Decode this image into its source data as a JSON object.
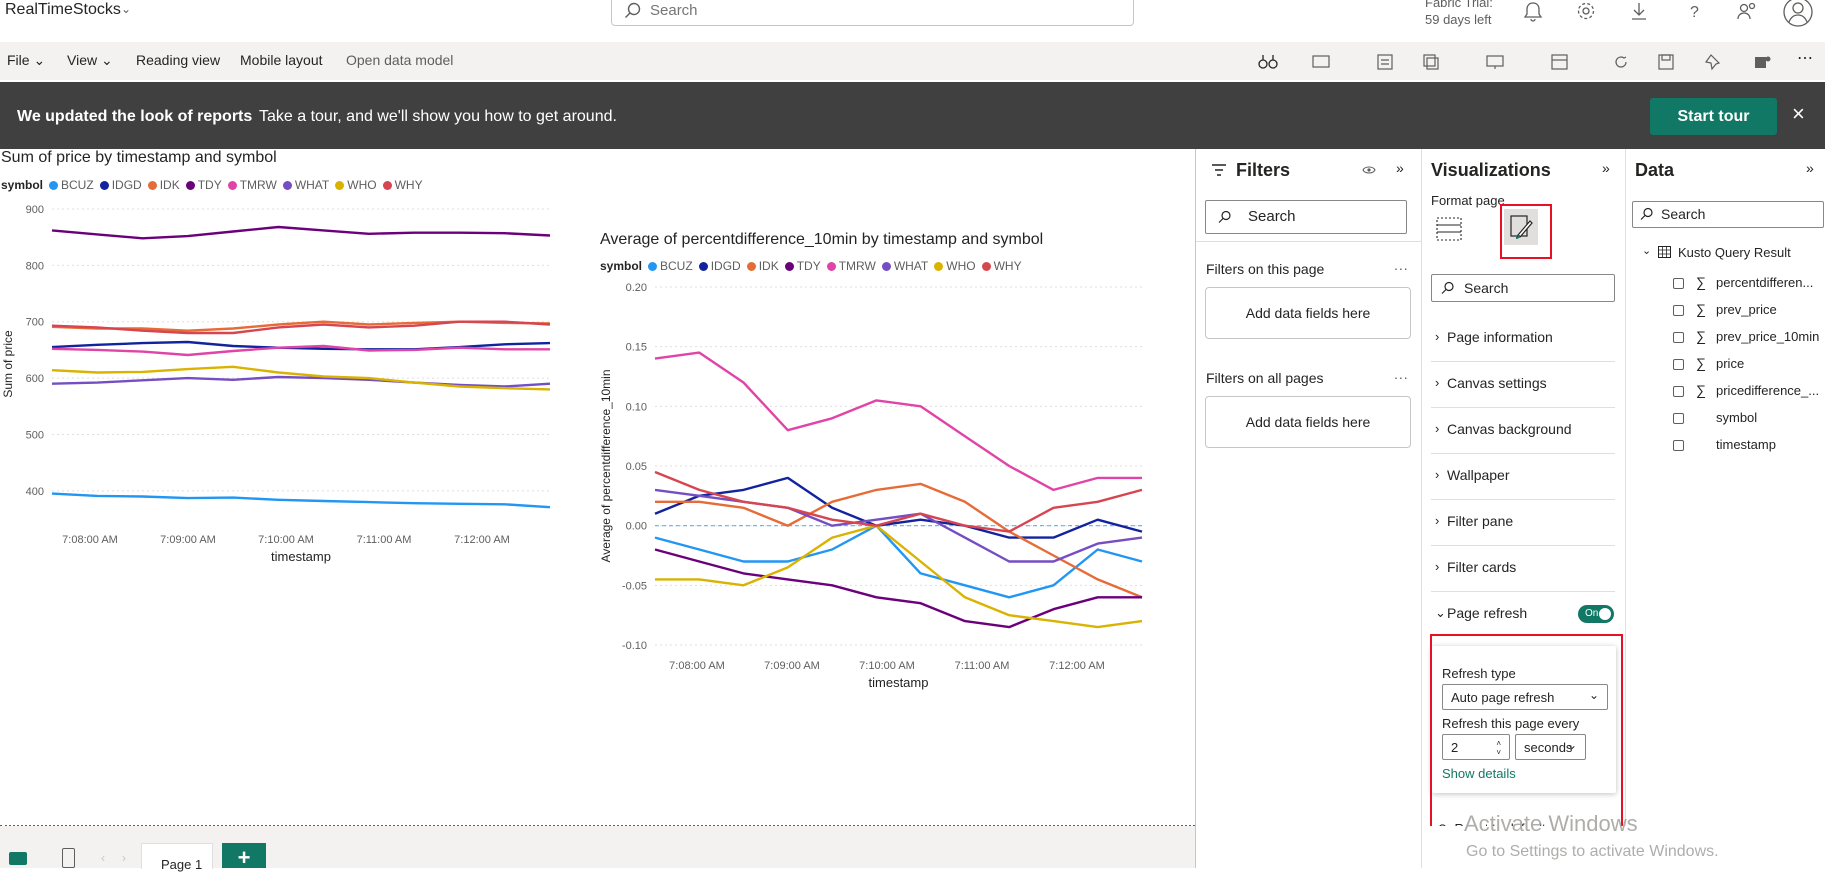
{
  "app": {
    "title": "RealTimeStocks"
  },
  "search": {
    "placeholder": "Search"
  },
  "trial": {
    "line1": "Fabric Trial:",
    "line2": "59 days left"
  },
  "menu": {
    "file": "File",
    "view": "View",
    "reading_view": "Reading view",
    "mobile_layout": "Mobile layout",
    "open_data_model": "Open data model"
  },
  "banner": {
    "bold": "We updated the look of reports",
    "text": "Take a tour, and we'll show you how to get around.",
    "button": "Start tour",
    "close": "×"
  },
  "legend_title": "symbol",
  "symbols": [
    "BCUZ",
    "IDGD",
    "IDK",
    "TDY",
    "TMRW",
    "WHAT",
    "WHO",
    "WHY"
  ],
  "colors": {
    "BCUZ": "#2196f3",
    "IDGD": "#12239e",
    "IDK": "#e66c37",
    "TDY": "#6b007b",
    "TMRW": "#e044a7",
    "WHAT": "#744ec2",
    "WHO": "#d9b300",
    "WHY": "#d64550",
    "accent": "#117865",
    "highlight": "#e81123"
  },
  "chart_data": [
    {
      "type": "line",
      "title": "Sum of price by timestamp and symbol",
      "xlabel": "timestamp",
      "ylabel": "Sum of price",
      "x_ticks": [
        "7:08:00 AM",
        "7:09:00 AM",
        "7:10:00 AM",
        "7:11:00 AM",
        "7:12:00 AM"
      ],
      "y_ticks": [
        "900",
        "800",
        "700",
        "600",
        "500",
        "400"
      ],
      "ylim": [
        350,
        900
      ],
      "grid": true,
      "legend": "top",
      "x": [
        "7:07:30",
        "7:08:00",
        "7:08:30",
        "7:09:00",
        "7:09:30",
        "7:10:00",
        "7:10:30",
        "7:11:00",
        "7:11:30",
        "7:12:00",
        "7:12:30",
        "7:12:45"
      ],
      "series": [
        {
          "name": "BCUZ",
          "values": [
            395,
            391,
            390,
            387,
            388,
            384,
            382,
            380,
            378,
            377,
            376,
            371
          ]
        },
        {
          "name": "IDGD",
          "values": [
            655,
            659,
            662,
            664,
            657,
            654,
            652,
            651,
            651,
            655,
            660,
            662
          ]
        },
        {
          "name": "IDK",
          "values": [
            691,
            688,
            688,
            684,
            688,
            695,
            700,
            695,
            698,
            700,
            698,
            697
          ]
        },
        {
          "name": "TDY",
          "values": [
            862,
            855,
            848,
            852,
            860,
            868,
            862,
            856,
            858,
            858,
            857,
            853
          ]
        },
        {
          "name": "TMRW",
          "values": [
            652,
            650,
            647,
            641,
            648,
            654,
            657,
            649,
            650,
            654,
            651,
            651
          ]
        },
        {
          "name": "WHAT",
          "values": [
            590,
            592,
            596,
            600,
            597,
            602,
            600,
            597,
            592,
            588,
            585,
            590
          ]
        },
        {
          "name": "WHO",
          "values": [
            614,
            610,
            611,
            616,
            620,
            610,
            603,
            600,
            592,
            585,
            582,
            580
          ]
        },
        {
          "name": "WHY",
          "values": [
            693,
            690,
            684,
            680,
            680,
            690,
            695,
            690,
            693,
            700,
            700,
            695
          ]
        }
      ]
    },
    {
      "type": "line",
      "title": "Average of percentdifference_10min by timestamp and symbol",
      "xlabel": "timestamp",
      "ylabel": "Average of percentdifference_10min",
      "x_ticks": [
        "7:08:00 AM",
        "7:09:00 AM",
        "7:10:00 AM",
        "7:11:00 AM",
        "7:12:00 AM"
      ],
      "y_ticks": [
        "0.20",
        "0.15",
        "0.10",
        "0.05",
        "0.00",
        "-0.05",
        "-0.10"
      ],
      "ylim": [
        -0.1,
        0.2
      ],
      "grid": true,
      "legend": "top",
      "x": [
        "7:07:45",
        "7:08:00",
        "7:08:30",
        "7:09:00",
        "7:09:30",
        "7:10:00",
        "7:10:30",
        "7:11:00",
        "7:11:30",
        "7:12:00",
        "7:12:30",
        "7:12:45"
      ],
      "series": [
        {
          "name": "BCUZ",
          "values": [
            -0.01,
            -0.02,
            -0.03,
            -0.03,
            -0.02,
            0.0,
            -0.04,
            -0.05,
            -0.06,
            -0.05,
            -0.02,
            -0.03
          ]
        },
        {
          "name": "IDGD",
          "values": [
            0.01,
            0.025,
            0.03,
            0.04,
            0.015,
            0.0,
            0.005,
            0.0,
            -0.01,
            -0.01,
            0.005,
            -0.005
          ]
        },
        {
          "name": "IDK",
          "values": [
            0.02,
            0.02,
            0.015,
            0.0,
            0.02,
            0.03,
            0.035,
            0.02,
            -0.005,
            -0.025,
            -0.045,
            -0.06
          ]
        },
        {
          "name": "TDY",
          "values": [
            -0.02,
            -0.03,
            -0.04,
            -0.045,
            -0.05,
            -0.06,
            -0.065,
            -0.08,
            -0.085,
            -0.07,
            -0.06,
            -0.06
          ]
        },
        {
          "name": "TMRW",
          "values": [
            0.14,
            0.145,
            0.12,
            0.08,
            0.09,
            0.105,
            0.1,
            0.075,
            0.05,
            0.03,
            0.04,
            0.04
          ]
        },
        {
          "name": "WHAT",
          "values": [
            0.03,
            0.025,
            0.02,
            0.015,
            0.0,
            0.005,
            0.01,
            -0.01,
            -0.03,
            -0.03,
            -0.015,
            -0.01
          ]
        },
        {
          "name": "WHO",
          "values": [
            -0.045,
            -0.045,
            -0.05,
            -0.035,
            -0.01,
            0.0,
            -0.03,
            -0.06,
            -0.075,
            -0.08,
            -0.085,
            -0.08
          ]
        },
        {
          "name": "WHY",
          "values": [
            0.045,
            0.03,
            0.02,
            0.015,
            0.005,
            0.0,
            0.01,
            0.0,
            -0.005,
            0.015,
            0.02,
            0.03
          ]
        }
      ]
    }
  ],
  "filters": {
    "title": "Filters",
    "search": "Search",
    "on_this_page": "Filters on this page",
    "on_all_pages": "Filters on all pages",
    "add_fields": "Add data fields here",
    "more": "..."
  },
  "viz": {
    "title": "Visualizations",
    "format_page": "Format page",
    "search": "Search",
    "sections": [
      "Page information",
      "Canvas settings",
      "Canvas background",
      "Wallpaper",
      "Filter pane",
      "Filter cards",
      "Page refresh"
    ],
    "toggle": "On",
    "refresh_type_label": "Refresh type",
    "refresh_type_value": "Auto page refresh",
    "refresh_every_label": "Refresh this page every",
    "refresh_every_value": "2",
    "refresh_unit": "seconds",
    "show_details": "Show details",
    "reset": "Reset to default"
  },
  "data_pane": {
    "title": "Data",
    "search": "Search",
    "table": "Kusto Query Result",
    "fields": [
      {
        "name": "percentdifferen...",
        "sigma": true
      },
      {
        "name": "prev_price",
        "sigma": true
      },
      {
        "name": "prev_price_10min",
        "sigma": true
      },
      {
        "name": "price",
        "sigma": true
      },
      {
        "name": "pricedifference_...",
        "sigma": true
      },
      {
        "name": "symbol",
        "sigma": false
      },
      {
        "name": "timestamp",
        "sigma": false
      }
    ]
  },
  "bottom": {
    "page_tab": "Page 1",
    "add": "+"
  },
  "watermark": {
    "line1": "Activate Windows",
    "line2": "Go to Settings to activate Windows."
  }
}
